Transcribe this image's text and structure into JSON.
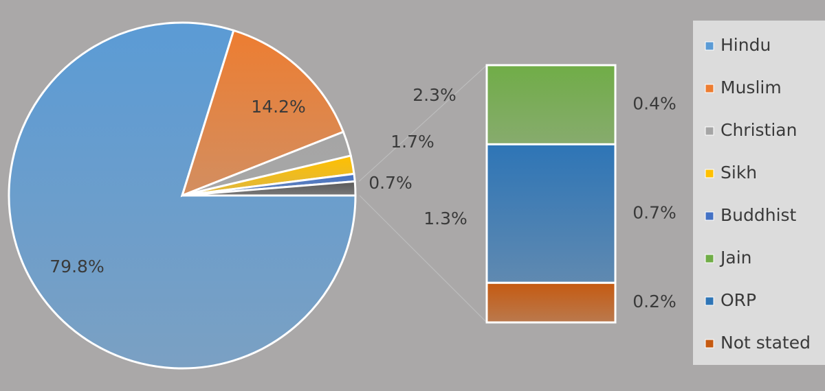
{
  "chart_data": {
    "type": "pie-of-bar",
    "pie": {
      "categories": [
        "Hindu",
        "Muslim",
        "Christian",
        "Sikh",
        "Buddhist",
        null
      ],
      "values": [
        79.8,
        14.2,
        2.3,
        1.7,
        0.7,
        1.3
      ],
      "value_labels": [
        "79.8%",
        "14.2%",
        "2.3%",
        "1.7%",
        "0.7%",
        "1.3%"
      ],
      "colors": [
        "#5b9bd5",
        "#ed7d31",
        "#a5a5a5",
        "#ffc000",
        "#4472c4",
        "#595959"
      ]
    },
    "bar": {
      "categories": [
        "Jain",
        "ORP",
        "Not stated"
      ],
      "values": [
        0.4,
        0.7,
        0.2
      ],
      "value_labels": [
        "0.4%",
        "0.7%",
        "0.2%"
      ],
      "colors": [
        "#70ad47",
        "#2e75b6",
        "#c55a11"
      ]
    }
  }
}
